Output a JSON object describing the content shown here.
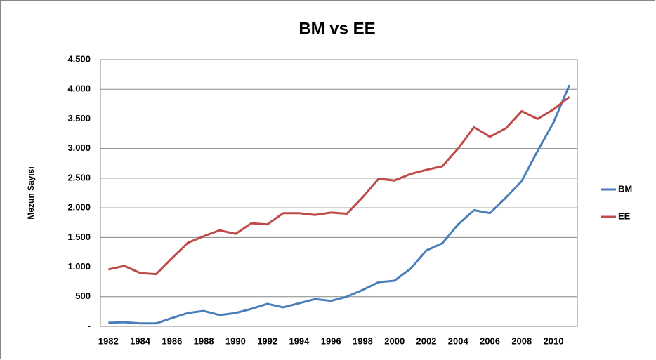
{
  "chart_data": {
    "type": "line",
    "title": "BM vs EE",
    "y_label": "Mezun Sayısı",
    "categories": [
      "1982",
      null,
      "1984",
      null,
      "1986",
      null,
      "1988",
      null,
      "1990",
      null,
      "1992",
      null,
      "1994",
      null,
      "1996",
      null,
      "1998",
      null,
      "2000",
      null,
      "2002",
      null,
      "2004",
      null,
      "2006",
      null,
      "2008",
      null,
      "2010",
      null
    ],
    "series": [
      {
        "name": "BM",
        "color": "#4a7ebb",
        "values": [
          60,
          70,
          50,
          50,
          140,
          225,
          260,
          190,
          225,
          295,
          380,
          320,
          390,
          460,
          430,
          500,
          615,
          745,
          770,
          970,
          1280,
          1400,
          1720,
          1960,
          1910,
          2170,
          2450,
          2960,
          3440,
          4070
        ]
      },
      {
        "name": "EE",
        "color": "#be4b48",
        "values": [
          960,
          1020,
          900,
          880,
          1150,
          1410,
          1520,
          1620,
          1560,
          1740,
          1720,
          1910,
          1910,
          1880,
          1920,
          1900,
          2180,
          2490,
          2460,
          2570,
          2640,
          2700,
          3000,
          3360,
          3200,
          3340,
          3630,
          3500,
          3660,
          3870
        ]
      }
    ],
    "ylim": [
      0,
      4500
    ],
    "yticks": [
      {
        "value": 0,
        "label": "-"
      },
      500,
      {
        "value": 1000,
        "label": "1.000"
      },
      {
        "value": 1500,
        "label": "1.500"
      },
      {
        "value": 2000,
        "label": "2.000"
      },
      {
        "value": 2500,
        "label": "2.500"
      },
      {
        "value": 3000,
        "label": "3.000"
      },
      {
        "value": 3500,
        "label": "3.500"
      },
      {
        "value": 4000,
        "label": "4.000"
      },
      {
        "value": 4500,
        "label": "4.500"
      }
    ],
    "grid": true,
    "legend": "right"
  }
}
